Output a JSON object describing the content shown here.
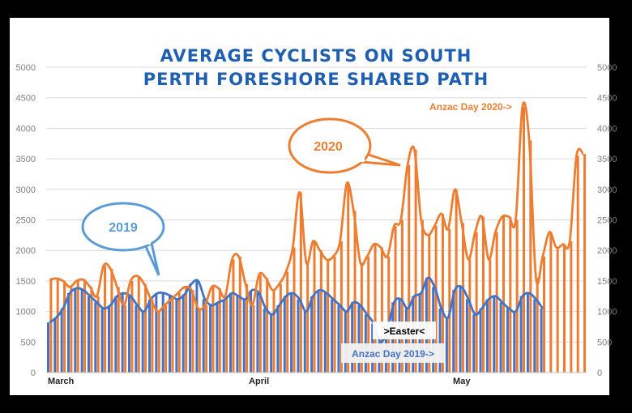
{
  "chart_data": {
    "type": "bar",
    "title_line1": "AVERAGE CYCLISTS ON SOUTH",
    "title_line2": "PERTH FORESHORE SHARED PATH",
    "xlabel": "",
    "ylabel": "",
    "ylim": [
      0,
      5000
    ],
    "yticks": [
      0,
      500,
      1000,
      1500,
      2000,
      2500,
      3000,
      3500,
      4000,
      4500,
      5000
    ],
    "grid": true,
    "x_tick_labels": [
      {
        "label": "March",
        "day_index": 0
      },
      {
        "label": "April",
        "day_index": 31
      },
      {
        "label": "May",
        "day_index": 61
      }
    ],
    "series": [
      {
        "name": "2019",
        "color": "#4472c4",
        "style": "bars+line",
        "values": [
          820,
          900,
          1050,
          1300,
          1380,
          1350,
          1250,
          1150,
          1050,
          1100,
          1250,
          1300,
          1250,
          1100,
          1000,
          1200,
          1300,
          1300,
          1250,
          1200,
          1280,
          1450,
          1500,
          1200,
          1100,
          1150,
          1200,
          1300,
          1250,
          1200,
          1350,
          1300,
          1050,
          950,
          1100,
          1250,
          1300,
          1200,
          1000,
          1250,
          1350,
          1300,
          1200,
          1100,
          1000,
          1150,
          1100,
          950,
          800,
          500,
          700,
          1150,
          1200,
          1050,
          1250,
          1300,
          1550,
          1400,
          1050,
          900,
          1350,
          1400,
          1200,
          950,
          1050,
          1200,
          1250,
          1150,
          1050,
          1000,
          1250,
          1300,
          1200,
          1050
        ]
      },
      {
        "name": "2020",
        "color": "#ed7d31",
        "style": "bars+line",
        "values": [
          1520,
          1540,
          1500,
          1400,
          1500,
          1520,
          1400,
          1250,
          1750,
          1700,
          1400,
          1100,
          1500,
          1580,
          1450,
          1200,
          1000,
          1100,
          1200,
          1300,
          1400,
          1350,
          1050,
          1100,
          1400,
          1380,
          1250,
          1850,
          1900,
          1450,
          1100,
          1600,
          1550,
          1350,
          1450,
          1650,
          2050,
          2950,
          1800,
          2150,
          2000,
          1850,
          1900,
          2150,
          3100,
          2650,
          1800,
          1900,
          2100,
          2050,
          1900,
          2400,
          2500,
          3400,
          3650,
          2500,
          2250,
          2400,
          2600,
          2350,
          3000,
          2450,
          1850,
          2300,
          2550,
          1850,
          2300,
          2550,
          2550,
          2500,
          4350,
          3800,
          1550,
          1900,
          2300,
          2050,
          2100,
          2150,
          3550,
          3580
        ]
      }
    ],
    "annotations": {
      "bubble_2019": "2019",
      "bubble_2020": "2020",
      "anzac_2020": "Anzac Day   2020->",
      "easter": ">Easter<",
      "anzac_2019": "Anzac Day 2019->"
    }
  }
}
